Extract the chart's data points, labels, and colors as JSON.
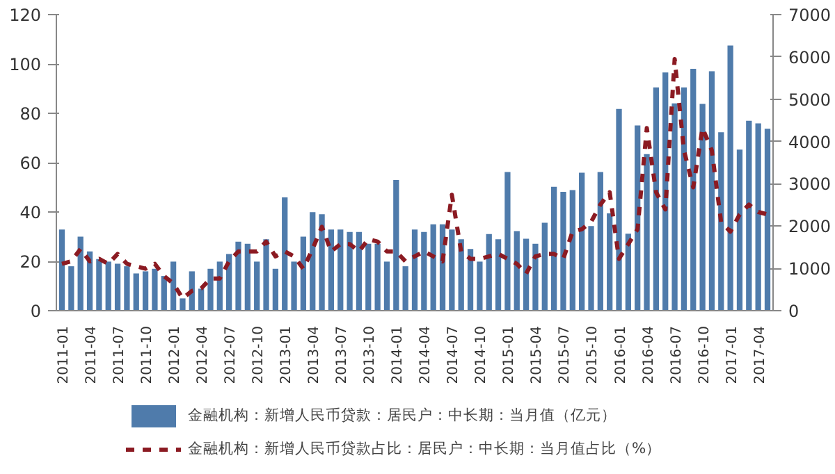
{
  "chart_data": {
    "type": "bar",
    "categories": [
      "2011-01",
      null,
      null,
      "2011-04",
      null,
      null,
      "2011-07",
      null,
      null,
      "2011-10",
      null,
      null,
      "2012-01",
      null,
      null,
      "2012-04",
      null,
      null,
      "2012-07",
      null,
      null,
      "2012-10",
      null,
      null,
      "2013-01",
      null,
      null,
      "2013-04",
      null,
      null,
      "2013-07",
      null,
      null,
      "2013-10",
      null,
      null,
      "2014-01",
      null,
      null,
      "2014-04",
      null,
      null,
      "2014-07",
      null,
      null,
      "2014-10",
      null,
      null,
      "2015-01",
      null,
      null,
      "2015-04",
      null,
      null,
      "2015-07",
      null,
      null,
      "2015-10",
      null,
      null,
      "2016-01",
      null,
      null,
      "2016-04",
      null,
      null,
      "2016-07",
      null,
      null,
      "2016-10",
      null,
      null,
      "2017-01",
      null,
      null,
      "2017-04",
      null
    ],
    "series": [
      {
        "name": "金融机构：新增人民币贷款：居民户：中长期：当月值（亿元）",
        "axis": "y2",
        "color": "#4f7bab",
        "values": [
          1920,
          1050,
          1750,
          1400,
          1220,
          1160,
          1110,
          1050,
          880,
          930,
          990,
          820,
          1160,
          290,
          930,
          520,
          990,
          1160,
          1340,
          1630,
          1580,
          1160,
          1690,
          990,
          2680,
          1160,
          1750,
          2330,
          2280,
          1920,
          1920,
          1860,
          1860,
          1580,
          1580,
          1160,
          3090,
          1050,
          1920,
          1860,
          2040,
          2040,
          1920,
          1690,
          1460,
          1160,
          1810,
          1690,
          3280,
          1880,
          1700,
          1580,
          2080,
          2930,
          2810,
          2850,
          3260,
          2000,
          3280,
          2300,
          4770,
          1820,
          4380,
          3700,
          5280,
          5630,
          4900,
          5280,
          5720,
          4890,
          5660,
          4220,
          6270,
          3810,
          4490,
          4430,
          4300
        ]
      },
      {
        "name": "金融机构：新增人民币贷款占比：居民户：中长期：当月值占比（%）",
        "type": "line",
        "color": "#8b1a22",
        "line_style": "dashed",
        "values": [
          19,
          20,
          25,
          20,
          21,
          19,
          23,
          19,
          18,
          17,
          19,
          14,
          11,
          5,
          8,
          9,
          13,
          13,
          20,
          24,
          24,
          24,
          28,
          22,
          24,
          22,
          17,
          25,
          34,
          24,
          27,
          27,
          24,
          29,
          28,
          24,
          24,
          20,
          22,
          24,
          22,
          20,
          47,
          24,
          21,
          21,
          22,
          23,
          21,
          19,
          15,
          22,
          23,
          23,
          21,
          32,
          33,
          36,
          43,
          48,
          21,
          27,
          33,
          74,
          48,
          41,
          102,
          65,
          50,
          74,
          65,
          36,
          32,
          39,
          43,
          40,
          39
        ]
      }
    ],
    "ylim": [
      0,
      120
    ],
    "yticks": [
      0,
      20,
      40,
      60,
      80,
      100,
      120
    ],
    "y2lim": [
      0,
      7000
    ],
    "y2ticks": [
      0,
      1000,
      2000,
      3000,
      4000,
      5000,
      6000,
      7000
    ],
    "grid": false,
    "legend": "bottom"
  }
}
